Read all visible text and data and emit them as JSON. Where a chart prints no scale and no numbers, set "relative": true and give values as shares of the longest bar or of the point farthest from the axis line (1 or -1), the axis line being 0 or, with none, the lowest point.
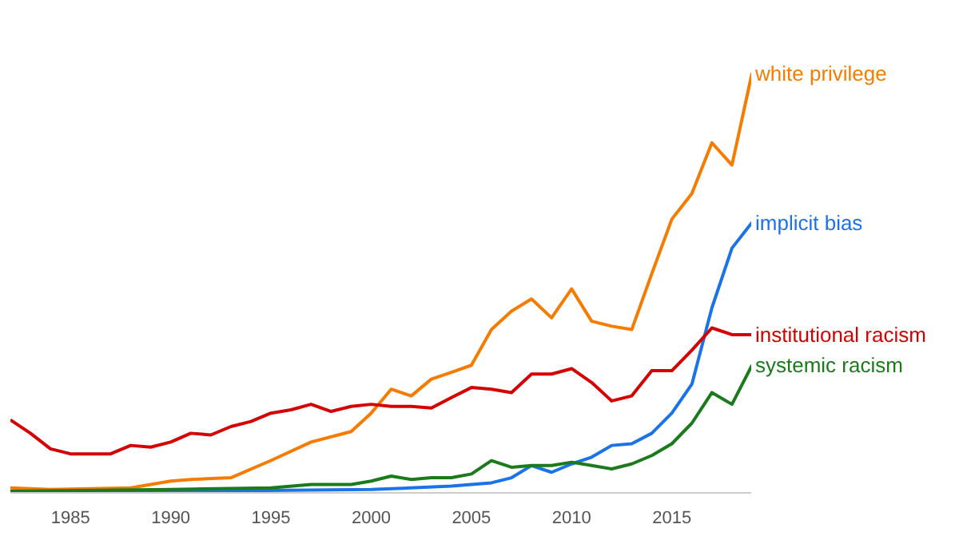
{
  "chart_data": {
    "type": "line",
    "relative": true,
    "legend": false,
    "tick_labels": "x",
    "xlim": [
      1982,
      2019
    ],
    "xticks": [
      1985,
      1990,
      1995,
      2000,
      2005,
      2010,
      2015
    ],
    "series": [
      {
        "name": "white privilege",
        "color": "#f57c00",
        "x": [
          1982,
          1984,
          1988,
          1990,
          1991,
          1993,
          1995,
          1997,
          1999,
          2000,
          2001,
          2002,
          2003,
          2004,
          2005,
          2006,
          2007,
          2008,
          2009,
          2010,
          2011,
          2012,
          2013,
          2014,
          2015,
          2016,
          2017,
          2018,
          2019
        ],
        "values": [
          0.012,
          0.008,
          0.012,
          0.028,
          0.032,
          0.036,
          0.077,
          0.121,
          0.146,
          0.19,
          0.247,
          0.231,
          0.271,
          0.287,
          0.304,
          0.389,
          0.433,
          0.462,
          0.417,
          0.486,
          0.409,
          0.397,
          0.389,
          0.522,
          0.652,
          0.713,
          0.834,
          0.781,
          1.0
        ]
      },
      {
        "name": "implicit bias",
        "color": "#1a73e8",
        "x": [
          1982,
          2000,
          2004,
          2006,
          2007,
          2008,
          2009,
          2010,
          2011,
          2012,
          2013,
          2014,
          2015,
          2016,
          2017,
          2018,
          2019
        ],
        "values": [
          0.0,
          0.008,
          0.016,
          0.024,
          0.036,
          0.065,
          0.049,
          0.069,
          0.085,
          0.113,
          0.117,
          0.142,
          0.19,
          0.259,
          0.441,
          0.583,
          0.644
        ]
      },
      {
        "name": "institutional racism",
        "color": "#d50000",
        "x": [
          1982,
          1983,
          1984,
          1985,
          1987,
          1988,
          1989,
          1990,
          1991,
          1992,
          1993,
          1994,
          1995,
          1996,
          1997,
          1998,
          1999,
          2000,
          2001,
          2002,
          2003,
          2004,
          2005,
          2006,
          2007,
          2008,
          2009,
          2010,
          2011,
          2012,
          2013,
          2014,
          2015,
          2016,
          2017,
          2018,
          2019
        ],
        "values": [
          0.174,
          0.142,
          0.105,
          0.093,
          0.093,
          0.113,
          0.109,
          0.121,
          0.142,
          0.138,
          0.158,
          0.17,
          0.19,
          0.198,
          0.211,
          0.194,
          0.206,
          0.211,
          0.206,
          0.206,
          0.202,
          0.227,
          0.251,
          0.247,
          0.239,
          0.283,
          0.283,
          0.296,
          0.263,
          0.219,
          0.231,
          0.291,
          0.291,
          0.34,
          0.393,
          0.377,
          0.377
        ]
      },
      {
        "name": "systemic racism",
        "color": "#1b7a1b",
        "x": [
          1982,
          1990,
          1995,
          1997,
          1999,
          2000,
          2001,
          2002,
          2003,
          2004,
          2005,
          2006,
          2007,
          2008,
          2009,
          2010,
          2011,
          2012,
          2013,
          2014,
          2015,
          2016,
          2017,
          2018,
          2019
        ],
        "values": [
          0.004,
          0.008,
          0.012,
          0.02,
          0.02,
          0.028,
          0.04,
          0.032,
          0.036,
          0.036,
          0.045,
          0.077,
          0.061,
          0.065,
          0.065,
          0.073,
          0.065,
          0.057,
          0.069,
          0.089,
          0.117,
          0.166,
          0.239,
          0.211,
          0.304
        ]
      }
    ]
  }
}
